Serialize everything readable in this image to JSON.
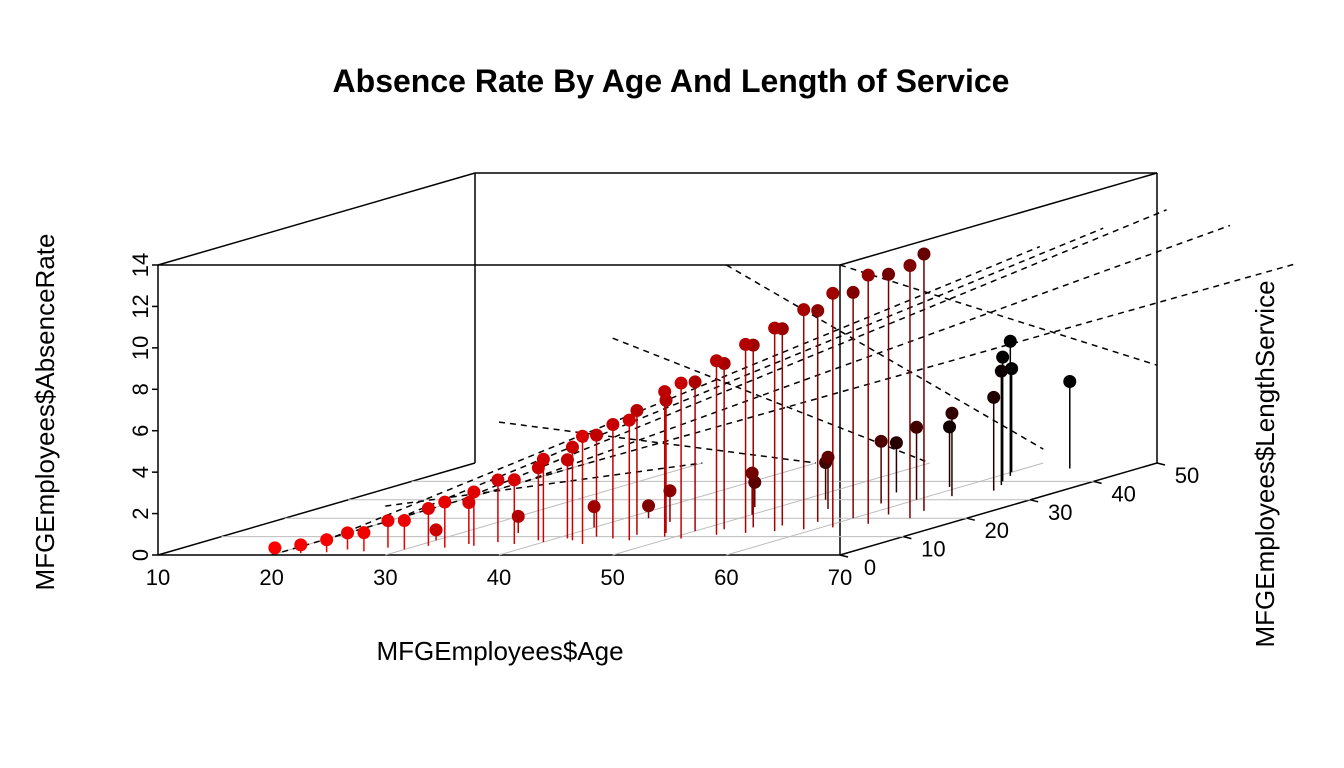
{
  "chart_data": {
    "type": "scatter",
    "plot_style": "scatter3d",
    "title": "Absence Rate By Age And Length of Service",
    "xlabel": "MFGEmployees$Age",
    "ylabel": "MFGEmployees$LengthService",
    "zlabel": "MFGEmployees$AbsenceRate",
    "xlim": [
      10,
      70
    ],
    "ylim": [
      0,
      50
    ],
    "zlim": [
      0,
      14
    ],
    "x_ticks": [
      "10",
      "20",
      "30",
      "40",
      "50",
      "60",
      "70"
    ],
    "y_ticks": [
      "0",
      "10",
      "20",
      "30",
      "40",
      "50"
    ],
    "z_ticks": [
      "0",
      "2",
      "4",
      "6",
      "8",
      "10",
      "12",
      "14"
    ],
    "point_color_low": "#ff0000",
    "point_color_high": "#000000",
    "regression_plane": true,
    "vertical_drop_lines": true,
    "grid": true,
    "points": [
      {
        "x": 20,
        "y": 0.5,
        "z": 0.3
      },
      {
        "x": 22,
        "y": 1,
        "z": 0.4
      },
      {
        "x": 24,
        "y": 1.5,
        "z": 0.6
      },
      {
        "x": 25,
        "y": 3,
        "z": 0.8
      },
      {
        "x": 27,
        "y": 2,
        "z": 0.9
      },
      {
        "x": 28,
        "y": 4,
        "z": 1.3
      },
      {
        "x": 30,
        "y": 3,
        "z": 1.4
      },
      {
        "x": 31,
        "y": 5,
        "z": 1.8
      },
      {
        "x": 33,
        "y": 4,
        "z": 2.2
      },
      {
        "x": 34,
        "y": 6,
        "z": 2.0
      },
      {
        "x": 35,
        "y": 5,
        "z": 2.6
      },
      {
        "x": 36,
        "y": 7,
        "z": 3.0
      },
      {
        "x": 38,
        "y": 6,
        "z": 3.1
      },
      {
        "x": 39,
        "y": 8,
        "z": 3.5
      },
      {
        "x": 40,
        "y": 7,
        "z": 4.0
      },
      {
        "x": 41,
        "y": 9,
        "z": 3.8
      },
      {
        "x": 42,
        "y": 8,
        "z": 4.5
      },
      {
        "x": 43,
        "y": 10,
        "z": 4.9
      },
      {
        "x": 44,
        "y": 6,
        "z": 5.2
      },
      {
        "x": 45,
        "y": 9,
        "z": 5.5
      },
      {
        "x": 46,
        "y": 11,
        "z": 6.0
      },
      {
        "x": 47,
        "y": 8,
        "z": 5.8
      },
      {
        "x": 48,
        "y": 12,
        "z": 6.4
      },
      {
        "x": 49,
        "y": 10,
        "z": 7.0
      },
      {
        "x": 50,
        "y": 13,
        "z": 7.2
      },
      {
        "x": 51,
        "y": 9,
        "z": 7.5
      },
      {
        "x": 52,
        "y": 14,
        "z": 8.0
      },
      {
        "x": 53,
        "y": 11,
        "z": 8.4
      },
      {
        "x": 54,
        "y": 15,
        "z": 8.8
      },
      {
        "x": 55,
        "y": 12,
        "z": 9.1
      },
      {
        "x": 56,
        "y": 16,
        "z": 9.5
      },
      {
        "x": 57,
        "y": 13,
        "z": 9.8
      },
      {
        "x": 58,
        "y": 18,
        "z": 10.2
      },
      {
        "x": 59,
        "y": 14,
        "z": 10.6
      },
      {
        "x": 60,
        "y": 20,
        "z": 10.9
      },
      {
        "x": 61,
        "y": 15,
        "z": 11.3
      },
      {
        "x": 62,
        "y": 22,
        "z": 11.6
      },
      {
        "x": 63,
        "y": 17,
        "z": 12.0
      },
      {
        "x": 64,
        "y": 24,
        "z": 12.4
      },
      {
        "x": 65,
        "y": 20,
        "z": 12.2
      },
      {
        "x": 30,
        "y": 8,
        "z": 0.5
      },
      {
        "x": 35,
        "y": 12,
        "z": 0.8
      },
      {
        "x": 40,
        "y": 15,
        "z": 1.0
      },
      {
        "x": 45,
        "y": 18,
        "z": 1.5
      },
      {
        "x": 50,
        "y": 22,
        "z": 2.0
      },
      {
        "x": 55,
        "y": 25,
        "z": 2.5
      },
      {
        "x": 58,
        "y": 28,
        "z": 3.0
      },
      {
        "x": 60,
        "y": 30,
        "z": 3.5
      },
      {
        "x": 62,
        "y": 32,
        "z": 4.0
      },
      {
        "x": 64,
        "y": 35,
        "z": 4.5
      },
      {
        "x": 63,
        "y": 38,
        "z": 5.5
      },
      {
        "x": 62,
        "y": 40,
        "z": 6.0
      },
      {
        "x": 61,
        "y": 43,
        "z": 6.5
      },
      {
        "x": 60,
        "y": 45,
        "z": 5.0
      },
      {
        "x": 64,
        "y": 47,
        "z": 4.2
      },
      {
        "x": 42,
        "y": 20,
        "z": 0.6
      },
      {
        "x": 48,
        "y": 26,
        "z": 1.2
      },
      {
        "x": 52,
        "y": 30,
        "z": 1.8
      },
      {
        "x": 56,
        "y": 34,
        "z": 2.4
      },
      {
        "x": 59,
        "y": 37,
        "z": 2.9
      }
    ]
  }
}
